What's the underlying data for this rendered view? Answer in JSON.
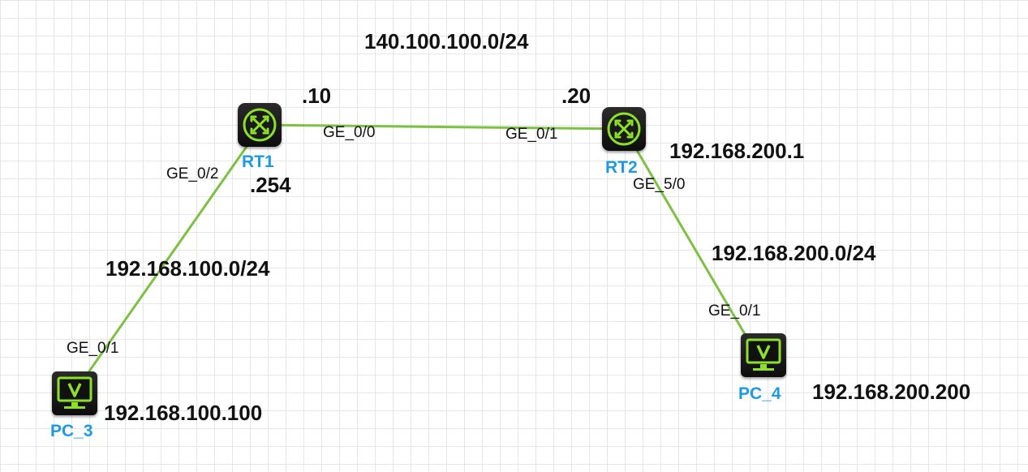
{
  "networks": {
    "wan": "140.100.100.0/24",
    "lan1": "192.168.100.0/24",
    "lan2": "192.168.200.0/24"
  },
  "devices": {
    "rt1": {
      "name": "RT1",
      "icon": "router-icon"
    },
    "rt2": {
      "name": "RT2",
      "icon": "router-icon"
    },
    "pc3": {
      "name": "PC_3",
      "icon": "pc-monitor-icon"
    },
    "pc4": {
      "name": "PC_4",
      "icon": "pc-monitor-icon"
    }
  },
  "addresses": {
    "rt1_wan": ".10",
    "rt2_wan": ".20",
    "rt1_lan": ".254",
    "rt2_lan": "192.168.200.1",
    "pc3": "192.168.100.100",
    "pc4": "192.168.200.200"
  },
  "ports": {
    "rt1_ge00": "GE_0/0",
    "rt2_ge01": "GE_0/1",
    "rt1_ge02": "GE_0/2",
    "rt2_ge50": "GE_5/0",
    "pc3_ge01": "GE_0/1",
    "pc4_ge01": "GE_0/1"
  },
  "colors": {
    "link": "#7dc142",
    "icon_accent": "#8de02a",
    "label": "#1e9be0"
  }
}
